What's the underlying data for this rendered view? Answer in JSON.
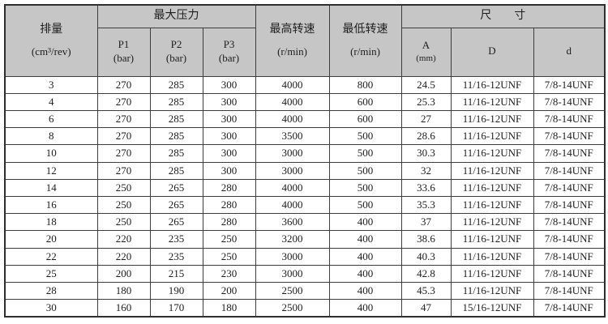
{
  "page": {
    "background_color": "#ffffff"
  },
  "table": {
    "colors": {
      "header_background": "#c6c6c6",
      "border": "#3d3d3d",
      "outer_border": "#2e2e2e",
      "text": "#1e1e1e",
      "body_background": "#ffffff"
    },
    "header": {
      "displacement_title": "排量",
      "displacement_unit": "(cm³/rev)",
      "max_pressure_title": "最大压力",
      "p1_title": "P1",
      "p1_unit": "(bar)",
      "p2_title": "P2",
      "p2_unit": "(bar)",
      "p3_title": "P3",
      "p3_unit": "(bar)",
      "max_speed_title": "最高转速",
      "max_speed_unit": "(r/min)",
      "min_speed_title": "最低转速",
      "min_speed_unit": "(r/min)",
      "dimensions_title": "尺　　寸",
      "a_title": "A",
      "a_unit": "(mm)",
      "dim_D_title": "D",
      "dim_d_title": "d"
    },
    "columns": [
      "displacement",
      "p1",
      "p2",
      "p3",
      "max-speed",
      "min-speed",
      "dim-a",
      "dim-D",
      "dim-d"
    ],
    "rows": [
      [
        "3",
        "270",
        "285",
        "300",
        "4000",
        "800",
        "24.5",
        "11/16-12UNF",
        "7/8-14UNF"
      ],
      [
        "4",
        "270",
        "285",
        "300",
        "4000",
        "600",
        "25.3",
        "11/16-12UNF",
        "7/8-14UNF"
      ],
      [
        "6",
        "270",
        "285",
        "300",
        "4000",
        "600",
        "27",
        "11/16-12UNF",
        "7/8-14UNF"
      ],
      [
        "8",
        "270",
        "285",
        "300",
        "3500",
        "500",
        "28.6",
        "11/16-12UNF",
        "7/8-14UNF"
      ],
      [
        "10",
        "270",
        "285",
        "300",
        "3000",
        "500",
        "30.3",
        "11/16-12UNF",
        "7/8-14UNF"
      ],
      [
        "12",
        "270",
        "285",
        "300",
        "3000",
        "500",
        "32",
        "11/16-12UNF",
        "7/8-14UNF"
      ],
      [
        "14",
        "250",
        "265",
        "280",
        "4000",
        "500",
        "33.6",
        "11/16-12UNF",
        "7/8-14UNF"
      ],
      [
        "16",
        "250",
        "265",
        "280",
        "4000",
        "500",
        "35.3",
        "11/16-12UNF",
        "7/8-14UNF"
      ],
      [
        "18",
        "250",
        "265",
        "280",
        "3600",
        "400",
        "37",
        "11/16-12UNF",
        "7/8-14UNF"
      ],
      [
        "20",
        "220",
        "235",
        "250",
        "3200",
        "400",
        "38.6",
        "11/16-12UNF",
        "7/8-14UNF"
      ],
      [
        "22",
        "220",
        "235",
        "250",
        "3000",
        "400",
        "40.3",
        "11/16-12UNF",
        "7/8-14UNF"
      ],
      [
        "25",
        "200",
        "215",
        "230",
        "3000",
        "400",
        "42.8",
        "11/16-12UNF",
        "7/8-14UNF"
      ],
      [
        "28",
        "180",
        "190",
        "200",
        "2500",
        "400",
        "45.3",
        "11/16-12UNF",
        "7/8-14UNF"
      ],
      [
        "30",
        "160",
        "170",
        "180",
        "2500",
        "400",
        "47",
        "15/16-12UNF",
        "7/8-14UNF"
      ]
    ]
  }
}
